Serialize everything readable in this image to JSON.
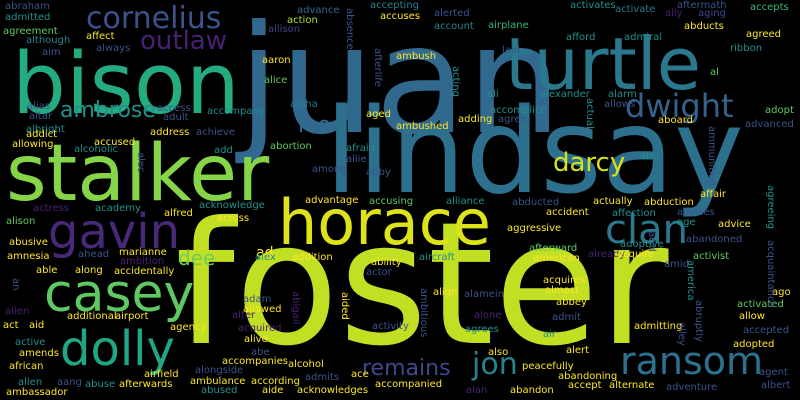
{
  "background": "#000000",
  "palette": [
    "#440154",
    "#3b528b",
    "#21918c",
    "#5ec962",
    "#fde725"
  ],
  "words": [
    {
      "text": "juan",
      "color": "#31688e"
    },
    {
      "text": "foster",
      "color": "#c2df23"
    },
    {
      "text": "lindsay",
      "color": "#2d708e"
    },
    {
      "text": "stalker",
      "color": "#86d549"
    },
    {
      "text": "bison",
      "color": "#25ab82"
    },
    {
      "text": "turtle",
      "color": "#2a788e"
    },
    {
      "text": "horace",
      "color": "#dde318"
    },
    {
      "text": "casey",
      "color": "#5ec962"
    },
    {
      "text": "dolly",
      "color": "#21a685"
    },
    {
      "text": "ransom",
      "color": "#2c728e"
    },
    {
      "text": "gavin",
      "color": "#482979"
    },
    {
      "text": "cornelius",
      "color": "#3b528b"
    },
    {
      "text": "outlaw",
      "color": "#482173"
    },
    {
      "text": "dwight",
      "color": "#33628d"
    },
    {
      "text": "clan",
      "color": "#2a788e"
    },
    {
      "text": "darcy",
      "color": "#d8e219"
    },
    {
      "text": "ambrose",
      "color": "#21918c"
    },
    {
      "text": "leo",
      "color": "#31688e"
    },
    {
      "text": "jon",
      "color": "#26828e"
    },
    {
      "text": "remains",
      "color": "#3e4989"
    },
    {
      "text": "dee",
      "color": "#6ece58"
    },
    {
      "text": "ad",
      "color": "#fde725"
    },
    {
      "text": "abraham",
      "color": "#3b528b"
    },
    {
      "text": "admitted",
      "color": "#21918c"
    },
    {
      "text": "advance",
      "color": "#31688e"
    },
    {
      "text": "accepting",
      "color": "#26828e"
    },
    {
      "text": "activates",
      "color": "#21918c"
    },
    {
      "text": "aftermath",
      "color": "#3b528b"
    },
    {
      "text": "accepts",
      "color": "#35b779"
    },
    {
      "text": "agreement",
      "color": "#5ec962"
    },
    {
      "text": "affect",
      "color": "#fde725"
    },
    {
      "text": "action",
      "color": "#b5de2b"
    },
    {
      "text": "accuses",
      "color": "#fde725"
    },
    {
      "text": "alerted",
      "color": "#3b528b"
    },
    {
      "text": "activate",
      "color": "#2a788e"
    },
    {
      "text": "ally",
      "color": "#482173"
    },
    {
      "text": "aging",
      "color": "#3e4989"
    },
    {
      "text": "although",
      "color": "#26828e"
    },
    {
      "text": "always",
      "color": "#3b528b"
    },
    {
      "text": "allison",
      "color": "#414487"
    },
    {
      "text": "account",
      "color": "#26828e"
    },
    {
      "text": "airplane",
      "color": "#35b779"
    },
    {
      "text": "abducts",
      "color": "#fde725"
    },
    {
      "text": "aim",
      "color": "#3b528b"
    },
    {
      "text": "laid",
      "color": "#3b528b"
    },
    {
      "text": "afford",
      "color": "#21918c"
    },
    {
      "text": "admiral",
      "color": "#21918c"
    },
    {
      "text": "ribbon",
      "color": "#21918c"
    },
    {
      "text": "agreed",
      "color": "#fde725"
    },
    {
      "text": "aaron",
      "color": "#fde725"
    },
    {
      "text": "alice",
      "color": "#5ec962"
    },
    {
      "text": "ambush",
      "color": "#fde725"
    },
    {
      "text": "al",
      "color": "#5ec962"
    },
    {
      "text": "alias",
      "color": "#3b528b"
    },
    {
      "text": "altar",
      "color": "#3b528b"
    },
    {
      "text": "alpha",
      "color": "#2a788e"
    },
    {
      "text": "ali",
      "color": "#21918c"
    },
    {
      "text": "alexander",
      "color": "#21918c"
    },
    {
      "text": "alarm",
      "color": "#21918c"
    },
    {
      "text": "allows",
      "color": "#3b528b"
    },
    {
      "text": "adopt",
      "color": "#5ec962"
    },
    {
      "text": "albright",
      "color": "#21918c"
    },
    {
      "text": "accompany",
      "color": "#21918c"
    },
    {
      "text": "access",
      "color": "#3b528b"
    },
    {
      "text": "adult",
      "color": "#3b528b"
    },
    {
      "text": "aged",
      "color": "#fde725"
    },
    {
      "text": "accomplice",
      "color": "#21918c"
    },
    {
      "text": "advanced",
      "color": "#3b528b"
    },
    {
      "text": "addict",
      "color": "#fde725"
    },
    {
      "text": "alcoholic",
      "color": "#21918c"
    },
    {
      "text": "address",
      "color": "#fde725"
    },
    {
      "text": "achieve",
      "color": "#3b528b"
    },
    {
      "text": "ambushed",
      "color": "#fde725"
    },
    {
      "text": "adding",
      "color": "#fde725"
    },
    {
      "text": "agree",
      "color": "#3b528b"
    },
    {
      "text": "aboard",
      "color": "#fde725"
    },
    {
      "text": "allowing",
      "color": "#fde725"
    },
    {
      "text": "accused",
      "color": "#fde725"
    },
    {
      "text": "abortion",
      "color": "#5ec962"
    },
    {
      "text": "afraid",
      "color": "#21918c"
    },
    {
      "text": "allie",
      "color": "#3b528b"
    },
    {
      "text": "abu",
      "color": "#21918c"
    },
    {
      "text": "add",
      "color": "#21918c"
    },
    {
      "text": "among",
      "color": "#3b528b"
    },
    {
      "text": "abby",
      "color": "#3b528b"
    },
    {
      "text": "affair",
      "color": "#fde725"
    },
    {
      "text": "advice",
      "color": "#fde725"
    },
    {
      "text": "actress",
      "color": "#482173"
    },
    {
      "text": "academy",
      "color": "#21918c"
    },
    {
      "text": "alfred",
      "color": "#fde725"
    },
    {
      "text": "acknowledge",
      "color": "#21918c"
    },
    {
      "text": "advantage",
      "color": "#fde725"
    },
    {
      "text": "accusing",
      "color": "#5ec962"
    },
    {
      "text": "alliance",
      "color": "#21918c"
    },
    {
      "text": "abducted",
      "color": "#3b528b"
    },
    {
      "text": "actually",
      "color": "#fde725"
    },
    {
      "text": "abduction",
      "color": "#fde725"
    },
    {
      "text": "accident",
      "color": "#fde725"
    },
    {
      "text": "affection",
      "color": "#21918c"
    },
    {
      "text": "advises",
      "color": "#3b528b"
    },
    {
      "text": "age",
      "color": "#21918c"
    },
    {
      "text": "alison",
      "color": "#5ec962"
    },
    {
      "text": "across",
      "color": "#fde725"
    },
    {
      "text": "aggressive",
      "color": "#fde725"
    },
    {
      "text": "adoptive",
      "color": "#21918c"
    },
    {
      "text": "abandoned",
      "color": "#3b528b"
    },
    {
      "text": "abusive",
      "color": "#fde725"
    },
    {
      "text": "amnesia",
      "color": "#fde725"
    },
    {
      "text": "ahead",
      "color": "#3b528b"
    },
    {
      "text": "marianne",
      "color": "#fde725"
    },
    {
      "text": "ambition",
      "color": "#482173"
    },
    {
      "text": "alex",
      "color": "#21918c"
    },
    {
      "text": "addition",
      "color": "#fde725"
    },
    {
      "text": "ability",
      "color": "#fde725"
    },
    {
      "text": "afterward",
      "color": "#5ec962"
    },
    {
      "text": "american",
      "color": "#fde725"
    },
    {
      "text": "already",
      "color": "#482173"
    },
    {
      "text": "acquire",
      "color": "#fde725"
    },
    {
      "text": "activist",
      "color": "#5ec962"
    },
    {
      "text": "amid",
      "color": "#3b528b"
    },
    {
      "text": "able",
      "color": "#fde725"
    },
    {
      "text": "along",
      "color": "#fde725"
    },
    {
      "text": "accidentally",
      "color": "#fde725"
    },
    {
      "text": "aircraft",
      "color": "#21918c"
    },
    {
      "text": "actor",
      "color": "#3b528b"
    },
    {
      "text": "acquires",
      "color": "#fde725"
    },
    {
      "text": "ago",
      "color": "#fde725"
    },
    {
      "text": "almost",
      "color": "#fde725"
    },
    {
      "text": "align",
      "color": "#fde725"
    },
    {
      "text": "alamein",
      "color": "#3b528b"
    },
    {
      "text": "abbey",
      "color": "#fde725"
    },
    {
      "text": "activated",
      "color": "#5ec962"
    },
    {
      "text": "allow",
      "color": "#fde725"
    },
    {
      "text": "adam",
      "color": "#3b528b"
    },
    {
      "text": "allowed",
      "color": "#fde725"
    },
    {
      "text": "alien",
      "color": "#482173"
    },
    {
      "text": "additional",
      "color": "#fde725"
    },
    {
      "text": "airport",
      "color": "#fde725"
    },
    {
      "text": "act",
      "color": "#fde725"
    },
    {
      "text": "aid",
      "color": "#fde725"
    },
    {
      "text": "alter",
      "color": "#482173"
    },
    {
      "text": "agency",
      "color": "#fde725"
    },
    {
      "text": "alone",
      "color": "#482173"
    },
    {
      "text": "admit",
      "color": "#3b528b"
    },
    {
      "text": "admitting",
      "color": "#fde725"
    },
    {
      "text": "accepted",
      "color": "#3b528b"
    },
    {
      "text": "acquired",
      "color": "#482173"
    },
    {
      "text": "activity",
      "color": "#3b528b"
    },
    {
      "text": "agrees",
      "color": "#21918c"
    },
    {
      "text": "air",
      "color": "#21918c"
    },
    {
      "text": "active",
      "color": "#21918c"
    },
    {
      "text": "amends",
      "color": "#fde725"
    },
    {
      "text": "alive",
      "color": "#fde725"
    },
    {
      "text": "adopted",
      "color": "#fde725"
    },
    {
      "text": "african",
      "color": "#fde725"
    },
    {
      "text": "abe",
      "color": "#3b528b"
    },
    {
      "text": "accompanies",
      "color": "#fde725"
    },
    {
      "text": "alert",
      "color": "#fde725"
    },
    {
      "text": "also",
      "color": "#fde725"
    },
    {
      "text": "agent",
      "color": "#3b528b"
    },
    {
      "text": "alcohol",
      "color": "#fde725"
    },
    {
      "text": "alongside",
      "color": "#3b528b"
    },
    {
      "text": "peacefully",
      "color": "#fde725"
    },
    {
      "text": "allen",
      "color": "#21918c"
    },
    {
      "text": "aang",
      "color": "#3b528b"
    },
    {
      "text": "airfield",
      "color": "#fde725"
    },
    {
      "text": "ambulance",
      "color": "#fde725"
    },
    {
      "text": "according",
      "color": "#fde725"
    },
    {
      "text": "admits",
      "color": "#3b528b"
    },
    {
      "text": "ace",
      "color": "#fde725"
    },
    {
      "text": "accompanied",
      "color": "#fde725"
    },
    {
      "text": "abandoning",
      "color": "#fde725"
    },
    {
      "text": "abuse",
      "color": "#21918c"
    },
    {
      "text": "afterwards",
      "color": "#fde725"
    },
    {
      "text": "abused",
      "color": "#21918c"
    },
    {
      "text": "aide",
      "color": "#fde725"
    },
    {
      "text": "acknowledges",
      "color": "#fde725"
    },
    {
      "text": "alan",
      "color": "#482173"
    },
    {
      "text": "abandon",
      "color": "#fde725"
    },
    {
      "text": "accept",
      "color": "#fde725"
    },
    {
      "text": "alternate",
      "color": "#fde725"
    },
    {
      "text": "adventure",
      "color": "#3b528b"
    },
    {
      "text": "albert",
      "color": "#3b528b"
    },
    {
      "text": "ambassador",
      "color": "#fde725"
    },
    {
      "text": "absence",
      "color": "#3b528b"
    },
    {
      "text": "afterlife",
      "color": "#3b528b"
    },
    {
      "text": "acting",
      "color": "#21918c"
    },
    {
      "text": "actual",
      "color": "#21918c"
    },
    {
      "text": "alec",
      "color": "#3b528b"
    },
    {
      "text": "ammunition",
      "color": "#3b528b"
    },
    {
      "text": "agreeing",
      "color": "#21918c"
    },
    {
      "text": "acquaintance",
      "color": "#3b528b"
    },
    {
      "text": "acid",
      "color": "#3b528b"
    },
    {
      "text": "abigail",
      "color": "#482173"
    },
    {
      "text": "aided",
      "color": "#fde725"
    },
    {
      "text": "ambitious",
      "color": "#3b528b"
    },
    {
      "text": "america",
      "color": "#21918c"
    },
    {
      "text": "abruptly",
      "color": "#3b528b"
    },
    {
      "text": "alley",
      "color": "#3b528b"
    },
    {
      "text": "an",
      "color": "#3b528b"
    }
  ]
}
